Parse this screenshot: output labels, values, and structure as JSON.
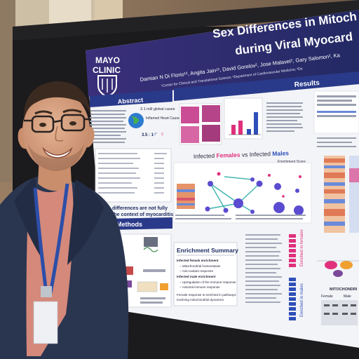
{
  "poster": {
    "title_line1": "Sex Differences in Mitoch",
    "title_line2": "during Viral Myocard",
    "authors": "Damian N Di Florio¹², Angita Jain¹², David Gorelov², Jose Malavet², Gary Salomon², Ka",
    "affiliations": "¹Center for Clinical and Translational Science; ²Department of Cardiovascular Medicine; ³De",
    "logo_line1": "MAYO",
    "logo_line2": "CLINIC",
    "abstract_heading": "Abstract",
    "methods_heading": "Methods",
    "results_heading": "Results",
    "stat_text": "3.1 mill global cases",
    "inflamed_heart_text": "Inflamed Heart Caused by Virus",
    "ratio_text": "3.5 : 1",
    "infected_label_pre": "Infected ",
    "infected_females": "Females",
    "infected_vs": " vs Infected ",
    "infected_males": "Males",
    "enrichment_score": "Enrichment Score",
    "enrichment_summary_heading": "Enrichment Summary",
    "summary_lines": [
      "Infected female enrichment",
      "– Mitochondrial homeostasis",
      "– Anti-oxidant response",
      "Infected male enrichment",
      "– Upregulation of the immune response",
      "– Antiviral immune response",
      "Female response is enriched in pathways",
      "involving mitochondrial dynamics"
    ],
    "differences_text": "differences are not fully",
    "context_text": "the context of myocarditis!",
    "enriched_in_females": "Enriched in females",
    "enriched_in_males": "Enriched in males",
    "mitochondria_label": "MITOCHONDRI",
    "female_label": "Female",
    "male_label": "Male"
  },
  "colors": {
    "poster_header": "#2c2f6b",
    "mayo_blue": "#1b2a5e",
    "female_magenta": "#e0307c",
    "male_blue": "#2e4fb8",
    "shirt_salmon": "#d4897a",
    "blazer_navy": "#2a3550",
    "lanyard_blue": "#2c4ea8"
  }
}
